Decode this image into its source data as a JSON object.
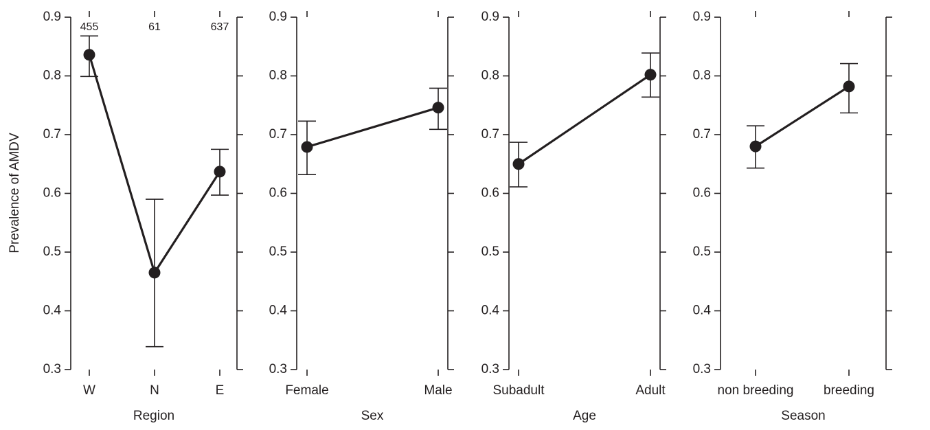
{
  "chart_data": [
    {
      "type": "line",
      "x_label": "Region",
      "y_label": "Prevalence of AMDV",
      "color": "#231f20",
      "categories": [
        "W",
        "N",
        "E"
      ],
      "values": [
        0.836,
        0.465,
        0.637
      ],
      "ci_lower": [
        0.799,
        0.339,
        0.597
      ],
      "ci_upper": [
        0.868,
        0.59,
        0.675
      ],
      "annotations": [
        "455",
        "61",
        "637"
      ],
      "ylim": [
        0.3,
        0.9
      ],
      "yticks": [
        0.3,
        0.4,
        0.5,
        0.6,
        0.7,
        0.8,
        0.9
      ]
    },
    {
      "type": "line",
      "x_label": "Sex",
      "color": "#231f20",
      "categories": [
        "Female",
        "Male"
      ],
      "values": [
        0.679,
        0.746
      ],
      "ci_lower": [
        0.632,
        0.709
      ],
      "ci_upper": [
        0.723,
        0.779
      ],
      "ylim": [
        0.3,
        0.9
      ],
      "yticks": [
        0.3,
        0.4,
        0.5,
        0.6,
        0.7,
        0.8,
        0.9
      ]
    },
    {
      "type": "line",
      "x_label": "Age",
      "color": "#231f20",
      "categories": [
        "Subadult",
        "Adult"
      ],
      "values": [
        0.65,
        0.802
      ],
      "ci_lower": [
        0.611,
        0.764
      ],
      "ci_upper": [
        0.687,
        0.839
      ],
      "ylim": [
        0.3,
        0.9
      ],
      "yticks": [
        0.3,
        0.4,
        0.5,
        0.6,
        0.7,
        0.8,
        0.9
      ]
    },
    {
      "type": "line",
      "x_label": "Season",
      "color": "#231f20",
      "categories": [
        "non breeding",
        "breeding"
      ],
      "values": [
        0.68,
        0.782
      ],
      "ci_lower": [
        0.643,
        0.737
      ],
      "ci_upper": [
        0.715,
        0.821
      ],
      "ylim": [
        0.3,
        0.9
      ],
      "yticks": [
        0.3,
        0.4,
        0.5,
        0.6,
        0.7,
        0.8,
        0.9
      ]
    }
  ]
}
